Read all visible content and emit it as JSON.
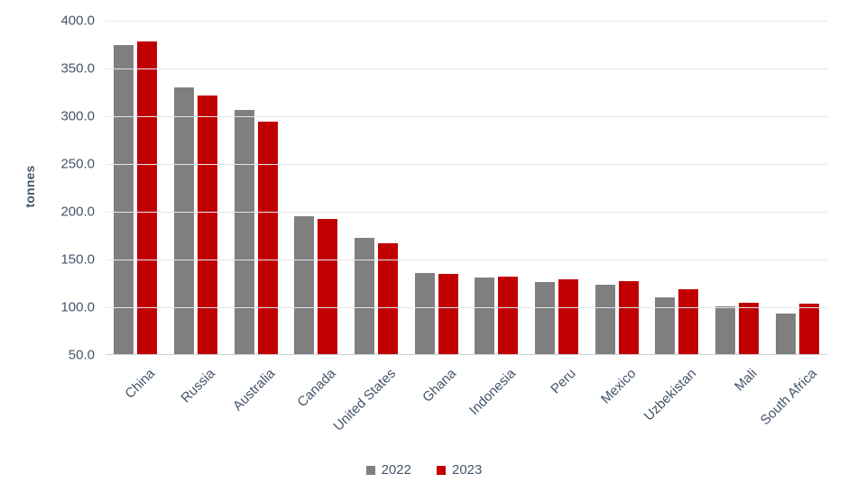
{
  "chart_data": {
    "type": "bar",
    "title": "",
    "ylabel": "tonnes",
    "categories": [
      "China",
      "Russia",
      "Australia",
      "Canada",
      "United States",
      "Ghana",
      "Indonesia",
      "Peru",
      "Mexico",
      "Uzbekistan",
      "Mali",
      "South Africa"
    ],
    "series": [
      {
        "name": "2022",
        "color": "#7F7F7F",
        "values": [
          375,
          330,
          307,
          195,
          173,
          136,
          131,
          126,
          124,
          110,
          101,
          93
        ]
      },
      {
        "name": "2023",
        "color": "#C00000",
        "values": [
          378,
          322,
          294,
          192,
          167,
          135,
          132,
          129,
          127,
          119,
          105,
          104
        ]
      }
    ],
    "ylim": [
      50,
      400
    ],
    "ytick_step": 50,
    "ytick_labels": [
      "400.0",
      "350.0",
      "300.0",
      "250.0",
      "200.0",
      "150.0",
      "100.0",
      "50.0"
    ],
    "grid": true,
    "legend_position": "bottom",
    "colors": {
      "axis_text": "#44546A",
      "gridline": "#E2E6ED",
      "axis_line": "#CDD2DB",
      "background": "#FFFFFF"
    }
  }
}
